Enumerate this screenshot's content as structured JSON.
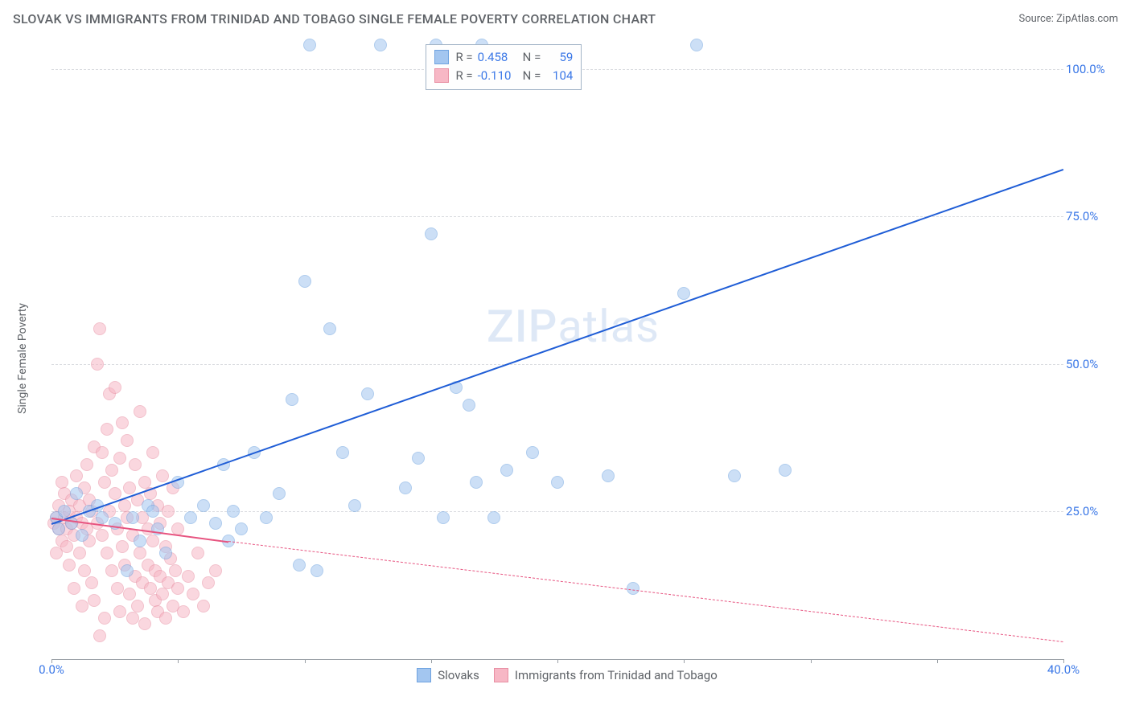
{
  "title": "SLOVAK VS IMMIGRANTS FROM TRINIDAD AND TOBAGO SINGLE FEMALE POVERTY CORRELATION CHART",
  "source": "Source: ZipAtlas.com",
  "ylabel": "Single Female Poverty",
  "chart": {
    "type": "scatter",
    "xlim": [
      0,
      40
    ],
    "ylim": [
      0,
      105
    ],
    "grid_color": "#dadce0",
    "axis_color": "#9aa0a6",
    "background_color": "#ffffff",
    "point_radius": 8,
    "point_opacity": 0.55,
    "y_ticks": [
      25,
      50,
      75,
      100
    ],
    "y_tick_labels": [
      "25.0%",
      "50.0%",
      "75.0%",
      "100.0%"
    ],
    "x_ticks": [
      0,
      10,
      20,
      30,
      40
    ],
    "x_tick_labels": [
      "0.0%",
      "",
      "",
      "",
      "40.0%"
    ],
    "x_minor_ticks": [
      0,
      5,
      10,
      15,
      20,
      25,
      30,
      35,
      40
    ],
    "tick_label_color": "#3b78e7",
    "label_color": "#5f6368",
    "label_fontsize": 14,
    "tick_fontsize": 15
  },
  "watermark": {
    "zip": "ZIP",
    "atlas": "atlas",
    "color": "#a3c0e8"
  },
  "series": {
    "slovaks": {
      "label": "Slovaks",
      "fill_color": "#a3c6f0",
      "border_color": "#6fa3e0",
      "trend_color": "#1f5dd6",
      "r": "0.458",
      "n": "59",
      "trend": {
        "x0": 0,
        "y0": 23,
        "x1": 40,
        "y1": 83
      },
      "points": [
        [
          0.2,
          24
        ],
        [
          0.3,
          22
        ],
        [
          0.5,
          25
        ],
        [
          0.8,
          23
        ],
        [
          1.0,
          28
        ],
        [
          1.2,
          21
        ],
        [
          1.5,
          25
        ],
        [
          1.8,
          26
        ],
        [
          2.0,
          24
        ],
        [
          2.5,
          23
        ],
        [
          3.0,
          15
        ],
        [
          3.2,
          24
        ],
        [
          3.5,
          20
        ],
        [
          3.8,
          26
        ],
        [
          4.0,
          25
        ],
        [
          4.2,
          22
        ],
        [
          4.5,
          18
        ],
        [
          5.0,
          30
        ],
        [
          5.5,
          24
        ],
        [
          6.0,
          26
        ],
        [
          6.5,
          23
        ],
        [
          6.8,
          33
        ],
        [
          7.0,
          20
        ],
        [
          7.2,
          25
        ],
        [
          7.5,
          22
        ],
        [
          8.0,
          35
        ],
        [
          8.5,
          24
        ],
        [
          9.0,
          28
        ],
        [
          9.5,
          44
        ],
        [
          9.8,
          16
        ],
        [
          10.0,
          64
        ],
        [
          10.2,
          104
        ],
        [
          10.5,
          15
        ],
        [
          11.0,
          56
        ],
        [
          11.5,
          35
        ],
        [
          12.0,
          26
        ],
        [
          12.5,
          45
        ],
        [
          13.0,
          104
        ],
        [
          14.0,
          29
        ],
        [
          14.5,
          34
        ],
        [
          15.0,
          72
        ],
        [
          15.2,
          104
        ],
        [
          15.5,
          24
        ],
        [
          16.0,
          46
        ],
        [
          16.5,
          43
        ],
        [
          16.8,
          30
        ],
        [
          17.0,
          104
        ],
        [
          17.5,
          24
        ],
        [
          18.0,
          32
        ],
        [
          19.0,
          35
        ],
        [
          20.0,
          30
        ],
        [
          22.0,
          31
        ],
        [
          23.0,
          12
        ],
        [
          25.0,
          62
        ],
        [
          25.5,
          104
        ],
        [
          27.0,
          31
        ],
        [
          29.0,
          32
        ]
      ]
    },
    "trinidad": {
      "label": "Immigrants from Trinidad and Tobago",
      "fill_color": "#f7b7c5",
      "border_color": "#e88fa3",
      "trend_color": "#e75480",
      "r": "-0.110",
      "n": "104",
      "trend": {
        "x0": 0,
        "y0": 24,
        "x1": 7,
        "y1": 20
      },
      "trend_ext": {
        "x0": 7,
        "y0": 20,
        "x1": 40,
        "y1": 3
      },
      "points": [
        [
          0.1,
          23
        ],
        [
          0.2,
          24
        ],
        [
          0.2,
          18
        ],
        [
          0.3,
          22
        ],
        [
          0.3,
          26
        ],
        [
          0.4,
          20
        ],
        [
          0.4,
          30
        ],
        [
          0.5,
          24
        ],
        [
          0.5,
          28
        ],
        [
          0.6,
          22
        ],
        [
          0.6,
          19
        ],
        [
          0.7,
          25
        ],
        [
          0.7,
          16
        ],
        [
          0.8,
          23
        ],
        [
          0.8,
          27
        ],
        [
          0.9,
          21
        ],
        [
          0.9,
          12
        ],
        [
          1.0,
          24
        ],
        [
          1.0,
          31
        ],
        [
          1.1,
          18
        ],
        [
          1.1,
          26
        ],
        [
          1.2,
          23
        ],
        [
          1.2,
          9
        ],
        [
          1.3,
          29
        ],
        [
          1.3,
          15
        ],
        [
          1.4,
          22
        ],
        [
          1.4,
          33
        ],
        [
          1.5,
          20
        ],
        [
          1.5,
          27
        ],
        [
          1.6,
          25
        ],
        [
          1.6,
          13
        ],
        [
          1.7,
          10
        ],
        [
          1.7,
          36
        ],
        [
          1.8,
          23
        ],
        [
          1.8,
          50
        ],
        [
          1.9,
          4
        ],
        [
          1.9,
          56
        ],
        [
          2.0,
          21
        ],
        [
          2.0,
          35
        ],
        [
          2.1,
          7
        ],
        [
          2.1,
          30
        ],
        [
          2.2,
          18
        ],
        [
          2.2,
          39
        ],
        [
          2.3,
          25
        ],
        [
          2.3,
          45
        ],
        [
          2.4,
          15
        ],
        [
          2.4,
          32
        ],
        [
          2.5,
          28
        ],
        [
          2.5,
          46
        ],
        [
          2.6,
          22
        ],
        [
          2.6,
          12
        ],
        [
          2.7,
          8
        ],
        [
          2.7,
          34
        ],
        [
          2.8,
          19
        ],
        [
          2.8,
          40
        ],
        [
          2.9,
          26
        ],
        [
          2.9,
          16
        ],
        [
          3.0,
          24
        ],
        [
          3.0,
          37
        ],
        [
          3.1,
          11
        ],
        [
          3.1,
          29
        ],
        [
          3.2,
          21
        ],
        [
          3.2,
          7
        ],
        [
          3.3,
          33
        ],
        [
          3.3,
          14
        ],
        [
          3.4,
          27
        ],
        [
          3.4,
          9
        ],
        [
          3.5,
          18
        ],
        [
          3.5,
          42
        ],
        [
          3.6,
          24
        ],
        [
          3.6,
          13
        ],
        [
          3.7,
          30
        ],
        [
          3.7,
          6
        ],
        [
          3.8,
          22
        ],
        [
          3.8,
          16
        ],
        [
          3.9,
          28
        ],
        [
          3.9,
          12
        ],
        [
          4.0,
          20
        ],
        [
          4.0,
          35
        ],
        [
          4.1,
          15
        ],
        [
          4.1,
          10
        ],
        [
          4.2,
          26
        ],
        [
          4.2,
          8
        ],
        [
          4.3,
          23
        ],
        [
          4.3,
          14
        ],
        [
          4.4,
          31
        ],
        [
          4.4,
          11
        ],
        [
          4.5,
          19
        ],
        [
          4.5,
          7
        ],
        [
          4.6,
          25
        ],
        [
          4.6,
          13
        ],
        [
          4.7,
          17
        ],
        [
          4.8,
          9
        ],
        [
          4.8,
          29
        ],
        [
          4.9,
          15
        ],
        [
          5.0,
          12
        ],
        [
          5.0,
          22
        ],
        [
          5.2,
          8
        ],
        [
          5.4,
          14
        ],
        [
          5.6,
          11
        ],
        [
          5.8,
          18
        ],
        [
          6.0,
          9
        ],
        [
          6.2,
          13
        ],
        [
          6.5,
          15
        ]
      ]
    }
  },
  "stats_box": {
    "label_r": "R =",
    "label_n": "N ="
  },
  "legend": {
    "slovaks": "Slovaks",
    "trinidad": "Immigrants from Trinidad and Tobago"
  }
}
